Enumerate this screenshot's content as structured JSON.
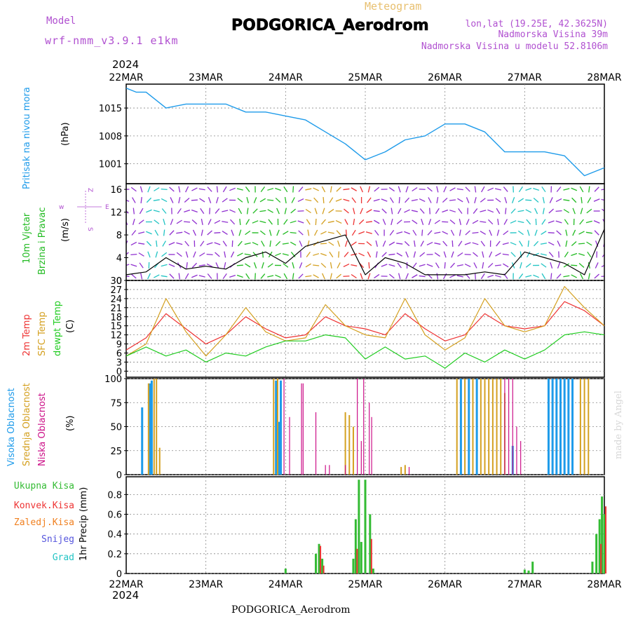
{
  "header": {
    "model_label": "Model",
    "model_name": "wrf-nmm_v3.9.1 e1km",
    "subtitle": "Meteogram",
    "station": "PODGORICA_Aerodrom",
    "coords": "lon,lat (19.25E, 42.3625N)",
    "altitude": "Nadmorska Visina 39m",
    "model_altitude": "Nadmorska Visina u modelu 52.8106m",
    "year": "2024",
    "footer_station": "PODGORICA_Aerodrom",
    "credit": "made by Angel"
  },
  "colors": {
    "pressure": "#1e9bea",
    "wind": "#22bb22",
    "temp2m": "#ee3333",
    "sfc": "#d4a020",
    "dew": "#22cc22",
    "high_cloud": "#1e9bea",
    "mid_cloud": "#d4a020",
    "low_cloud": "#cc1188",
    "total_precip": "#33bb33",
    "conv_precip": "#ee3333",
    "frozen_precip": "#f08020",
    "snow": "#5555dd",
    "hail": "#22c4c4",
    "label_purple": "#b050d0",
    "barb_violet": "#9030d0"
  },
  "chart_data": [
    {
      "type": "line",
      "ylabel_left": "Pritisak na nivou mora",
      "ylabel": "(hPa)",
      "x_ticks": [
        "22MAR",
        "23MAR",
        "24MAR",
        "25MAR",
        "26MAR",
        "27MAR",
        "28MAR"
      ],
      "yticks": [
        "1015",
        "1008",
        "1001"
      ],
      "ylim": [
        996,
        1021
      ],
      "x": [
        0,
        0.125,
        0.25,
        0.5,
        0.75,
        1,
        1.25,
        1.5,
        1.75,
        2,
        2.25,
        2.5,
        2.75,
        3,
        3.25,
        3.5,
        3.75,
        4,
        4.25,
        4.5,
        4.75,
        5,
        5.25,
        5.5,
        5.75,
        6
      ],
      "series": [
        {
          "values": [
            1020,
            1019,
            1019,
            1015,
            1016,
            1016,
            1016,
            1014,
            1014,
            1013,
            1012,
            1009,
            1006,
            1002,
            1004,
            1007,
            1008,
            1011,
            1011,
            1009,
            1004,
            1004,
            1004,
            1003,
            998,
            1000
          ]
        }
      ]
    },
    {
      "type": "line",
      "ylabel_left": [
        "10m Vjetar",
        "Brzina i Pravac"
      ],
      "ylabel": "(m/s)",
      "direction_key": [
        "Z",
        "w",
        "S",
        "E"
      ],
      "yticks": [
        "16",
        "12",
        "8",
        "4",
        "0"
      ],
      "ylim": [
        0,
        17
      ],
      "x": [
        0,
        0.25,
        0.5,
        0.75,
        1,
        1.25,
        1.5,
        1.75,
        2,
        2.25,
        2.5,
        2.75,
        3,
        3.25,
        3.5,
        3.75,
        4,
        4.25,
        4.5,
        4.75,
        5,
        5.25,
        5.5,
        5.75,
        6
      ],
      "series": [
        {
          "values": [
            1,
            1.5,
            4,
            2,
            2.5,
            2,
            4,
            5,
            3,
            6,
            7,
            8,
            1,
            4,
            3,
            1,
            1,
            1,
            1.5,
            1,
            5,
            4,
            3,
            1,
            9
          ]
        }
      ]
    },
    {
      "type": "line",
      "ylabel_left": [
        "2m Temp",
        "SFC Temp",
        "dewpt Temp"
      ],
      "ylabel": "(C)",
      "yticks": [
        "30",
        "27",
        "24",
        "21",
        "18",
        "15",
        "12",
        "9",
        "6",
        "3",
        "0"
      ],
      "ylim": [
        -2,
        30
      ],
      "x": [
        0,
        0.25,
        0.5,
        0.75,
        1,
        1.25,
        1.5,
        1.75,
        2,
        2.25,
        2.5,
        2.75,
        3,
        3.25,
        3.5,
        3.75,
        4,
        4.25,
        4.5,
        4.75,
        5,
        5.25,
        5.5,
        5.75,
        6
      ],
      "series": [
        {
          "name": "2m Temp",
          "values": [
            7,
            11,
            19,
            14,
            9,
            12,
            18,
            14,
            11,
            12,
            18,
            15,
            14,
            12,
            19,
            14,
            10,
            12,
            19,
            15,
            14,
            15,
            23,
            20,
            15
          ]
        },
        {
          "name": "SFC Temp",
          "values": [
            5,
            9,
            24,
            13,
            5,
            12,
            21,
            13,
            10,
            11,
            22,
            15,
            12,
            11,
            24,
            12,
            7,
            11,
            24,
            15,
            13,
            15,
            28,
            21,
            15
          ]
        },
        {
          "name": "dewpt Temp",
          "values": [
            5,
            8,
            5,
            7,
            3,
            6,
            5,
            8,
            10,
            10,
            12,
            11,
            4,
            8,
            4,
            5,
            1,
            6,
            3,
            7,
            4,
            7,
            12,
            13,
            12
          ]
        }
      ]
    },
    {
      "type": "bar",
      "ylabel_left": [
        "Visoka Oblacnost",
        "Srednja Oblacnost",
        "Niska Oblacnost"
      ],
      "ylabel": "(%)",
      "yticks": [
        "100",
        "75",
        "50",
        "25",
        "0"
      ],
      "ylim": [
        0,
        100
      ],
      "series": [
        {
          "name": "Visoka Oblacnost",
          "x": [
            0.2,
            0.3,
            0.32,
            1.88,
            1.92,
            1.94,
            4.2,
            4.3,
            4.4,
            4.85,
            5.3,
            5.35,
            5.4,
            5.45,
            5.5,
            5.55,
            5.6
          ],
          "values": [
            70,
            95,
            98,
            98,
            55,
            98,
            100,
            100,
            100,
            30,
            100,
            100,
            100,
            100,
            100,
            100,
            100
          ]
        },
        {
          "name": "Srednja Oblacnost",
          "x": [
            0.28,
            0.35,
            0.38,
            0.42,
            1.85,
            1.9,
            2.75,
            2.8,
            2.85,
            3.45,
            3.5,
            4.15,
            4.25,
            4.35,
            4.45,
            4.5,
            4.55,
            4.6,
            4.65,
            4.7,
            4.75,
            5.7,
            5.75,
            5.8
          ],
          "values": [
            95,
            100,
            100,
            28,
            100,
            100,
            65,
            62,
            50,
            8,
            10,
            100,
            100,
            100,
            100,
            100,
            100,
            100,
            100,
            100,
            85,
            100,
            100,
            100
          ]
        },
        {
          "name": "Niska Oblacnost",
          "x": [
            1.98,
            2.05,
            2.2,
            2.22,
            2.38,
            2.5,
            2.55,
            2.75,
            2.9,
            2.95,
            2.98,
            3.05,
            3.08,
            3.55,
            4.75,
            4.8,
            4.85,
            4.9,
            4.95
          ],
          "values": [
            100,
            60,
            95,
            95,
            65,
            10,
            10,
            10,
            100,
            35,
            100,
            75,
            60,
            8,
            100,
            100,
            100,
            50,
            35
          ]
        }
      ]
    },
    {
      "type": "bar",
      "ylabel_left": [
        "Ukupna Kisa",
        "Konvek.Kisa",
        "Zaledj.Kisa",
        "Snijeg",
        "Grad"
      ],
      "ylabel": "1hr Precip (mm)",
      "yticks": [
        "0.8",
        "0.6",
        "0.4",
        "0.2",
        "0"
      ],
      "ylim": [
        0,
        0.98
      ],
      "x_ticks": [
        "22MAR",
        "23MAR",
        "24MAR",
        "25MAR",
        "26MAR",
        "27MAR",
        "28MAR"
      ],
      "series": [
        {
          "name": "Ukupna Kisa",
          "x": [
            2.0,
            2.38,
            2.42,
            2.46,
            2.85,
            2.88,
            2.92,
            2.95,
            3.0,
            3.06,
            3.1,
            5.0,
            5.05,
            5.1,
            5.85,
            5.9,
            5.94,
            5.97,
            6.0
          ],
          "values": [
            0.05,
            0.2,
            0.3,
            0.15,
            0.15,
            0.55,
            0.95,
            0.32,
            0.95,
            0.6,
            0.05,
            0.04,
            0.03,
            0.12,
            0.12,
            0.4,
            0.55,
            0.78,
            0.6
          ]
        },
        {
          "name": "Konvek.Kisa",
          "x": [
            2.42,
            2.46,
            2.88,
            3.06,
            5.94,
            6.0
          ],
          "values": [
            0.28,
            0.08,
            0.25,
            0.35,
            0.3,
            0.68
          ]
        }
      ]
    }
  ]
}
